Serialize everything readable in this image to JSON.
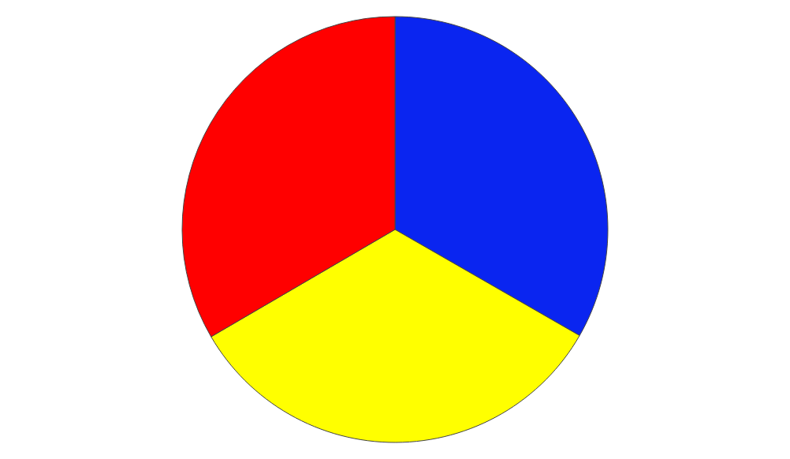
{
  "chart_data": {
    "type": "pie",
    "categories": [
      null,
      null,
      null
    ],
    "values": [
      33.3,
      33.3,
      33.4
    ],
    "colors": [
      "#0a25f0",
      "#ffff00",
      "#ff0000"
    ],
    "legend": false
  }
}
